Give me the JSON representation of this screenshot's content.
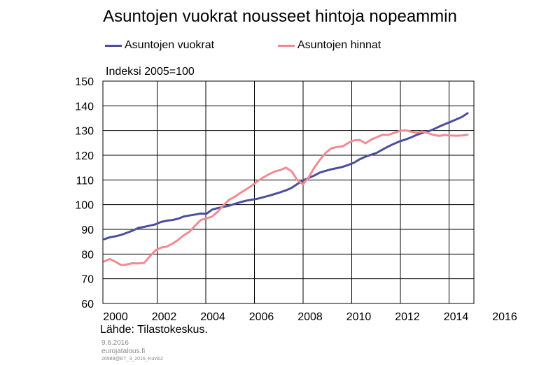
{
  "title": "Asuntojen vuokrat nousseet hintoja nopeammin",
  "unit_label": "Indeksi  2005=100",
  "source": "Lähde:  Tilastokeskus.",
  "date": "9.6.2016",
  "site": "eurojatalous.fi",
  "code": "26988@ET_3_2016_Kuvio2",
  "colors": {
    "rents": "#4b4f9c",
    "prices": "#f28b91"
  },
  "chart_data": {
    "type": "line",
    "title": "Asuntojen vuokrat nousseet hintoja nopeammin",
    "ylabel": "Indeksi  2005=100",
    "xlabel": "",
    "ylim": [
      60,
      150
    ],
    "xlim": [
      2000,
      2016
    ],
    "yticks": [
      "60",
      "70",
      "80",
      "90",
      "100",
      "110",
      "120",
      "130",
      "140",
      "150"
    ],
    "xticks": [
      "2000",
      "2002",
      "2004",
      "2006",
      "2008",
      "2010",
      "2012",
      "2014",
      "2016"
    ],
    "grid": true,
    "legend_position": "top",
    "series": [
      {
        "name": "Asuntojen vuokrat",
        "color": "#4b4f9c",
        "x": [
          2000.0,
          2000.25,
          2000.5,
          2000.75,
          2001.0,
          2001.25,
          2001.5,
          2001.75,
          2002.0,
          2002.25,
          2002.5,
          2002.75,
          2003.0,
          2003.25,
          2003.5,
          2003.75,
          2004.0,
          2004.25,
          2004.5,
          2004.75,
          2005.0,
          2005.25,
          2005.5,
          2005.75,
          2006.0,
          2006.25,
          2006.5,
          2006.75,
          2007.0,
          2007.25,
          2007.5,
          2007.75,
          2008.0,
          2008.25,
          2008.5,
          2008.75,
          2009.0,
          2009.25,
          2009.5,
          2009.75,
          2010.0,
          2010.25,
          2010.5,
          2010.75,
          2011.0,
          2011.25,
          2011.5,
          2011.75,
          2012.0,
          2012.25,
          2012.5,
          2012.75,
          2013.0,
          2013.25,
          2013.5,
          2013.75,
          2014.0,
          2014.25,
          2014.5,
          2014.75,
          2015.0,
          2015.25,
          2015.5,
          2015.75,
          2016.0
        ],
        "values": [
          86.0,
          86.8,
          87.2,
          87.8,
          88.6,
          89.5,
          90.6,
          91.0,
          91.5,
          92.0,
          93.0,
          93.5,
          93.8,
          94.3,
          95.2,
          95.6,
          96.0,
          96.4,
          96.3,
          98.0,
          98.6,
          99.1,
          99.6,
          100.3,
          101.0,
          101.6,
          102.0,
          102.4,
          103.0,
          103.6,
          104.3,
          105.0,
          105.8,
          106.8,
          108.3,
          109.8,
          110.8,
          111.8,
          113.0,
          113.7,
          114.3,
          114.8,
          115.3,
          116.1,
          117.0,
          118.4,
          119.4,
          120.2,
          121.0,
          122.3,
          123.5,
          124.6,
          125.6,
          126.3,
          127.2,
          128.2,
          129.0,
          129.6,
          130.5,
          131.6,
          132.6,
          133.5,
          134.5,
          135.5,
          137.0
        ]
      },
      {
        "name": "Asuntojen hinnat",
        "color": "#f28b91",
        "x": [
          2000.0,
          2000.25,
          2000.5,
          2000.75,
          2001.0,
          2001.25,
          2001.5,
          2001.75,
          2002.0,
          2002.25,
          2002.5,
          2002.75,
          2003.0,
          2003.25,
          2003.5,
          2003.75,
          2004.0,
          2004.25,
          2004.5,
          2004.75,
          2005.0,
          2005.25,
          2005.5,
          2005.75,
          2006.0,
          2006.25,
          2006.5,
          2006.75,
          2007.0,
          2007.25,
          2007.5,
          2007.75,
          2008.0,
          2008.25,
          2008.5,
          2008.75,
          2009.0,
          2009.25,
          2009.5,
          2009.75,
          2010.0,
          2010.25,
          2010.5,
          2010.75,
          2011.0,
          2011.25,
          2011.5,
          2011.75,
          2012.0,
          2012.25,
          2012.5,
          2012.75,
          2013.0,
          2013.25,
          2013.5,
          2013.75,
          2014.0,
          2014.25,
          2014.5,
          2014.75,
          2015.0,
          2015.25,
          2015.5,
          2015.75,
          2016.0
        ],
        "values": [
          77.0,
          78.0,
          76.8,
          75.5,
          75.8,
          76.3,
          76.2,
          76.4,
          79.0,
          81.5,
          82.6,
          83.0,
          84.2,
          85.7,
          87.6,
          89.0,
          91.5,
          93.8,
          94.4,
          95.2,
          97.2,
          99.8,
          102.0,
          103.2,
          104.8,
          106.2,
          107.7,
          109.5,
          111.0,
          112.3,
          113.4,
          114.0,
          115.0,
          113.5,
          110.0,
          108.2,
          111.0,
          115.0,
          118.2,
          121.0,
          122.8,
          123.3,
          123.6,
          125.0,
          126.0,
          126.2,
          124.8,
          126.3,
          127.3,
          128.3,
          128.2,
          129.0,
          129.8,
          130.1,
          129.6,
          129.1,
          129.6,
          129.0,
          128.2,
          127.8,
          128.2,
          128.0,
          127.9,
          128.0,
          128.3
        ]
      }
    ]
  }
}
